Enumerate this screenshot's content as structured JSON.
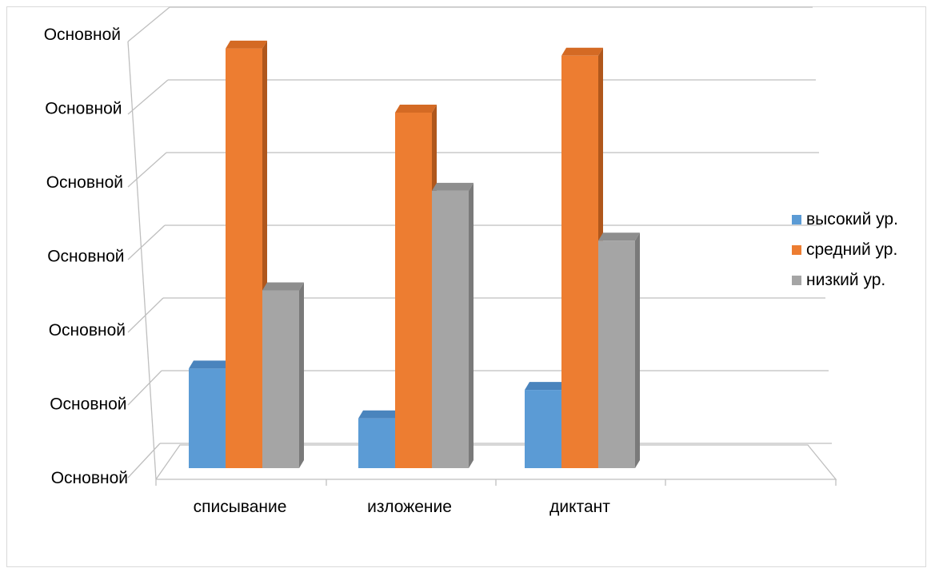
{
  "chart_data": {
    "type": "bar",
    "categories": [
      "списывание",
      "изложение",
      "диктант"
    ],
    "series": [
      {
        "name": "высокий ур.",
        "color": "#5b9bd5",
        "side": "#3f75a8",
        "top": "#4a84bd",
        "values": [
          1.4,
          0.7,
          1.1
        ]
      },
      {
        "name": "средний ур.",
        "color": "#ed7d31",
        "side": "#b0571c",
        "top": "#d46a24",
        "values": [
          5.9,
          5.0,
          5.8
        ]
      },
      {
        "name": "низкий ур.",
        "color": "#a5a5a5",
        "side": "#7a7a7a",
        "top": "#8e8e8e",
        "values": [
          2.5,
          3.9,
          3.2
        ]
      }
    ],
    "y_tick_labels": [
      "Основной",
      "Основной",
      "Основной",
      "Основной",
      "Основной",
      "Основной",
      "Основной"
    ],
    "ylim": [
      0,
      6
    ],
    "grid": true,
    "legend_position": "right"
  }
}
